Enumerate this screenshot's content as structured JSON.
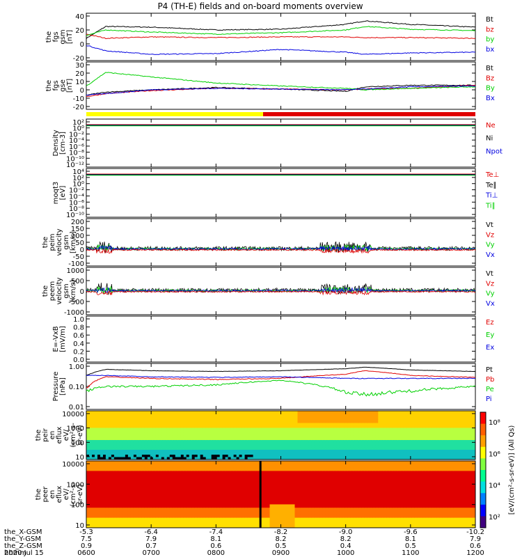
{
  "title": "P4 (TH-E) fields and on-board moments overview",
  "colors": {
    "black": "#000000",
    "red": "#e00000",
    "green": "#00d000",
    "blue": "#0000e0",
    "yellow": "#ffff00"
  },
  "chart_data": [
    {
      "type": "line",
      "id": "fgs_gsm",
      "ylabel_lines": [
        "the",
        "fgs",
        "gsm",
        "[nT]"
      ],
      "yticks": [
        "40",
        "20",
        "0",
        "-20"
      ],
      "ylim": [
        -20,
        40
      ],
      "legend": [
        "Bt",
        "bz",
        "by",
        "bx"
      ],
      "x": [
        600,
        630,
        700,
        800,
        900,
        1000,
        1030,
        1100,
        1200
      ],
      "series": [
        {
          "name": "Bt",
          "values": [
            8,
            25,
            24,
            20,
            21,
            28,
            33,
            28,
            24
          ]
        },
        {
          "name": "bz",
          "values": [
            14,
            8,
            10,
            9,
            10,
            10,
            9,
            9,
            8
          ]
        },
        {
          "name": "by",
          "values": [
            12,
            20,
            17,
            14,
            16,
            20,
            25,
            21,
            19
          ]
        },
        {
          "name": "bx",
          "values": [
            -2,
            -10,
            -15,
            -14,
            -8,
            -12,
            -15,
            -13,
            -12
          ]
        }
      ]
    },
    {
      "type": "line",
      "id": "fgs_gse",
      "ylabel_lines": [
        "the",
        "fgs",
        "gse",
        "[nT]"
      ],
      "yticks": [
        "30",
        "20",
        "10",
        "0",
        "-10",
        "-20"
      ],
      "ylim": [
        -25,
        30
      ],
      "legend": [
        "Bt",
        "Bz",
        "By",
        "Bx"
      ],
      "x": [
        600,
        630,
        700,
        800,
        900,
        1000,
        1030,
        1100,
        1200
      ],
      "series": [
        {
          "name": "Bt",
          "values": [
            -10,
            -6,
            -3,
            0,
            -2,
            -5,
            1,
            3,
            3
          ]
        },
        {
          "name": "Bz",
          "values": [
            -12,
            -8,
            -4,
            -1,
            -2,
            -3,
            -2,
            -1,
            3
          ]
        },
        {
          "name": "By",
          "values": [
            2,
            20,
            14,
            6,
            2,
            -1,
            -3,
            -1,
            1
          ]
        },
        {
          "name": "Bx",
          "values": [
            -10,
            -8,
            -3,
            -1,
            -2,
            -3,
            -2,
            1,
            2
          ]
        }
      ]
    },
    {
      "type": "line",
      "id": "density",
      "ylabel_lines": [
        "Density",
        "[cm-3]"
      ],
      "yticks": [
        "10²",
        "10⁰",
        "10⁻²",
        "10⁻⁴",
        "10⁻⁶",
        "10⁻⁸",
        "10⁻¹⁰",
        "10⁻¹²"
      ],
      "legend": [
        "Ne",
        "Ni",
        "Npot"
      ]
    },
    {
      "type": "line",
      "id": "temperature",
      "ylabel_lines": [
        "moqt3",
        "[eV]"
      ],
      "yticks": [
        "10⁴",
        "10²",
        "10⁰",
        "10⁻²",
        "10⁻⁴",
        "10⁻⁶",
        "10⁻⁸",
        "10⁻¹⁰"
      ],
      "legend": [
        "Te⊥",
        "Te∥",
        "Ti⊥",
        "Ti∥"
      ]
    },
    {
      "type": "line",
      "id": "peim_velocity",
      "ylabel_lines": [
        "the",
        "peim",
        "velocity",
        "gsm",
        "[km/s]"
      ],
      "yticks": [
        "200",
        "150",
        "100",
        "50",
        "0",
        "-50",
        "-100"
      ],
      "ylim": [
        -100,
        200
      ],
      "legend": [
        "Vt",
        "Vz",
        "Vy",
        "Vx"
      ]
    },
    {
      "type": "line",
      "id": "peem_velocity",
      "ylabel_lines": [
        "the",
        "peem",
        "velocity",
        "gsm",
        "[km/s]"
      ],
      "yticks": [
        "1000",
        "500",
        "0",
        "-500",
        "-1000"
      ],
      "ylim": [
        -1000,
        1000
      ],
      "legend": [
        "Vt",
        "Vz",
        "Vy",
        "Vx"
      ]
    },
    {
      "type": "line",
      "id": "efield",
      "ylabel_lines": [
        "E=-VxB",
        "[mV/m]"
      ],
      "yticks": [
        "1.0",
        "0.8",
        "0.6",
        "0.4",
        "0.2",
        "0.0"
      ],
      "ylim": [
        0,
        1
      ],
      "legend": [
        "Ez",
        "Ey",
        "Ex"
      ]
    },
    {
      "type": "line",
      "id": "pressure",
      "ylabel_lines": [
        "Pressure",
        "[nPa]"
      ],
      "yticks": [
        "1.00",
        "0.10",
        "0.01"
      ],
      "legend": [
        "Pt",
        "Pb",
        "Pe",
        "Pi"
      ],
      "x": [
        600,
        630,
        700,
        800,
        900,
        1000,
        1030,
        1100,
        1200
      ],
      "series": [
        {
          "name": "Pt",
          "values": [
            0.35,
            0.7,
            0.6,
            0.55,
            0.6,
            0.75,
            0.9,
            0.65,
            0.55
          ]
        },
        {
          "name": "Pb",
          "values": [
            0.08,
            0.3,
            0.25,
            0.22,
            0.25,
            0.4,
            0.6,
            0.35,
            0.28
          ]
        },
        {
          "name": "Pe",
          "values": [
            0.06,
            0.1,
            0.1,
            0.12,
            0.2,
            0.05,
            0.04,
            0.06,
            0.1
          ]
        },
        {
          "name": "Pi",
          "values": [
            0.35,
            0.35,
            0.3,
            0.28,
            0.3,
            0.25,
            0.25,
            0.25,
            0.25
          ]
        }
      ]
    },
    {
      "type": "heatmap",
      "id": "peir_eflux",
      "ylabel_lines": [
        "the",
        "peir",
        "en",
        "eflux",
        "eV/",
        "(cm²-s-",
        "sr-eV)"
      ],
      "yticks": [
        "10000",
        "1000",
        "100",
        "10"
      ]
    },
    {
      "type": "heatmap",
      "id": "peer_eflux",
      "ylabel_lines": [
        "the",
        "peer",
        "en",
        "eflux",
        "eV/",
        "(cm²-s-",
        "sr-eV)"
      ],
      "yticks": [
        "10000",
        "1000",
        "100",
        "10"
      ]
    }
  ],
  "colorbar": {
    "label": "[eV/(cm²-s-sr-eV)] (All Qs)",
    "ticks": [
      "10⁸",
      "10⁶",
      "10⁴",
      "10²"
    ]
  },
  "x_axis": {
    "rows": [
      {
        "label": "the_X-GSM",
        "values": [
          "-5.3",
          "-6.4",
          "-7.4",
          "-8.2",
          "-9.0",
          "-9.6",
          "-10.2"
        ]
      },
      {
        "label": "the_Y-GSM",
        "values": [
          "7.5",
          "7.9",
          "8.1",
          "8.2",
          "8.2",
          "8.1",
          "7.9"
        ]
      },
      {
        "label": "the_Z-GSM",
        "values": [
          "0.9",
          "0.7",
          "0.6",
          "0.5",
          "0.4",
          "0.5",
          "0.6"
        ]
      },
      {
        "label": "hhmm",
        "values": [
          "0600",
          "0700",
          "0800",
          "0900",
          "1000",
          "1100",
          "1200"
        ]
      }
    ],
    "date": "2020 Jul 15"
  }
}
